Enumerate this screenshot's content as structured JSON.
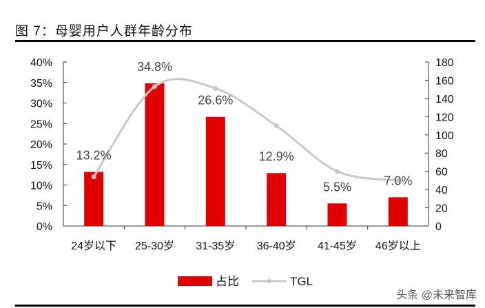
{
  "title": "图 7：母婴用户人群年龄分布",
  "watermark": "头条 @未来智库",
  "chart_data": {
    "type": "bar+line",
    "title": "图 7：母婴用户人群年龄分布",
    "categories": [
      "24岁以下",
      "25-30岁",
      "31-35岁",
      "36-40岁",
      "41-45岁",
      "46岁以上"
    ],
    "series": [
      {
        "name": "占比",
        "type": "bar",
        "axis": "left",
        "values": [
          13.2,
          34.8,
          26.6,
          12.9,
          5.5,
          7.0
        ],
        "labels": [
          "13.2%",
          "34.8%",
          "26.6%",
          "12.9%",
          "5.5%",
          "7.0%"
        ],
        "color": "#e00000"
      },
      {
        "name": "TGL",
        "type": "line",
        "axis": "right",
        "values": [
          54,
          153,
          151,
          110,
          60,
          50
        ],
        "color": "#c8c8c8"
      }
    ],
    "left_axis": {
      "ylim": [
        0,
        40
      ],
      "ticks": [
        "0%",
        "5%",
        "10%",
        "15%",
        "20%",
        "25%",
        "30%",
        "35%",
        "40%"
      ]
    },
    "right_axis": {
      "ylim": [
        0,
        180
      ],
      "ticks": [
        "0",
        "20",
        "40",
        "60",
        "80",
        "100",
        "120",
        "140",
        "160",
        "180"
      ]
    },
    "legend": "bottom-center",
    "grid": false
  }
}
